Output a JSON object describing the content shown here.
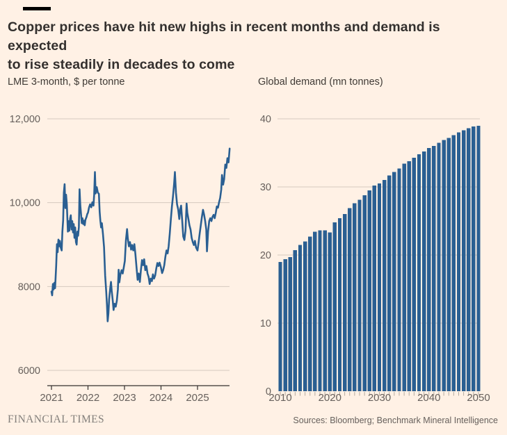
{
  "page": {
    "title_line1": "Copper prices have hit new highs in recent months and demand is expected",
    "title_line2": "to rise steadily in decades to come",
    "footer_brand": "FINANCIAL TIMES",
    "footer_sources": "Sources: Bloomberg; Benchmark Mineral Intelligence"
  },
  "colors": {
    "background": "#FFF1E5",
    "accent_bar": "#000000",
    "series_blue": "#2A5F92",
    "grid": "#D4C9BE",
    "axis": "#33302E",
    "tick_label": "#66605C",
    "bar_tick": "#B3A89C"
  },
  "chart_data": [
    {
      "type": "line",
      "title": "LME 3-month, $ per tonne",
      "ylabel": "$ per tonne",
      "ylim": [
        6000,
        12000
      ],
      "grid": true,
      "y_ticks": [
        {
          "value": 12000,
          "label": "12,000"
        },
        {
          "value": 10000,
          "label": "10,000"
        },
        {
          "value": 8000,
          "label": "8000"
        },
        {
          "value": 6000,
          "label": "6000"
        }
      ],
      "x_ticks": [
        {
          "value": 2021,
          "label": "2021"
        },
        {
          "value": 2022,
          "label": "2022"
        },
        {
          "value": 2023,
          "label": "2023"
        },
        {
          "value": 2024,
          "label": "2024"
        },
        {
          "value": 2025,
          "label": "2025"
        }
      ],
      "x_range": [
        2021.0,
        2025.88
      ],
      "series": [
        [
          2021.0,
          7880
        ],
        [
          2021.02,
          7790
        ],
        [
          2021.04,
          8060
        ],
        [
          2021.06,
          7930
        ],
        [
          2021.08,
          8090
        ],
        [
          2021.1,
          7960
        ],
        [
          2021.13,
          8500
        ],
        [
          2021.15,
          9010
        ],
        [
          2021.17,
          8820
        ],
        [
          2021.19,
          9120
        ],
        [
          2021.21,
          8960
        ],
        [
          2021.23,
          9090
        ],
        [
          2021.25,
          8940
        ],
        [
          2021.28,
          8860
        ],
        [
          2021.3,
          9310
        ],
        [
          2021.32,
          9580
        ],
        [
          2021.34,
          10240
        ],
        [
          2021.36,
          10440
        ],
        [
          2021.38,
          9870
        ],
        [
          2021.4,
          10190
        ],
        [
          2021.42,
          9960
        ],
        [
          2021.45,
          9310
        ],
        [
          2021.47,
          9560
        ],
        [
          2021.49,
          9330
        ],
        [
          2021.51,
          9620
        ],
        [
          2021.53,
          9700
        ],
        [
          2021.55,
          9360
        ],
        [
          2021.57,
          9560
        ],
        [
          2021.59,
          9290
        ],
        [
          2021.61,
          9490
        ],
        [
          2021.63,
          9160
        ],
        [
          2021.65,
          9410
        ],
        [
          2021.67,
          9060
        ],
        [
          2021.69,
          9000
        ],
        [
          2021.71,
          9310
        ],
        [
          2021.73,
          9210
        ],
        [
          2021.75,
          9420
        ],
        [
          2021.77,
          10320
        ],
        [
          2021.79,
          9930
        ],
        [
          2021.81,
          9730
        ],
        [
          2021.83,
          9510
        ],
        [
          2021.85,
          9630
        ],
        [
          2021.87,
          9490
        ],
        [
          2021.89,
          9570
        ],
        [
          2021.91,
          9460
        ],
        [
          2021.93,
          9590
        ],
        [
          2021.96,
          9660
        ],
        [
          2021.98,
          9730
        ],
        [
          2022.0,
          9760
        ],
        [
          2022.03,
          9890
        ],
        [
          2022.06,
          9960
        ],
        [
          2022.09,
          9890
        ],
        [
          2022.12,
          10010
        ],
        [
          2022.15,
          9930
        ],
        [
          2022.17,
          10190
        ],
        [
          2022.19,
          10730
        ],
        [
          2022.21,
          10220
        ],
        [
          2022.24,
          10370
        ],
        [
          2022.27,
          10240
        ],
        [
          2022.3,
          10210
        ],
        [
          2022.32,
          9780
        ],
        [
          2022.34,
          9570
        ],
        [
          2022.36,
          9410
        ],
        [
          2022.38,
          9510
        ],
        [
          2022.41,
          9260
        ],
        [
          2022.44,
          8940
        ],
        [
          2022.47,
          8260
        ],
        [
          2022.5,
          7860
        ],
        [
          2022.52,
          7560
        ],
        [
          2022.54,
          7170
        ],
        [
          2022.56,
          7360
        ],
        [
          2022.58,
          7690
        ],
        [
          2022.61,
          7960
        ],
        [
          2022.63,
          8110
        ],
        [
          2022.65,
          7900
        ],
        [
          2022.68,
          7650
        ],
        [
          2022.7,
          7440
        ],
        [
          2022.73,
          7590
        ],
        [
          2022.76,
          7520
        ],
        [
          2022.79,
          7660
        ],
        [
          2022.82,
          7930
        ],
        [
          2022.84,
          8400
        ],
        [
          2022.86,
          8100
        ],
        [
          2022.89,
          8290
        ],
        [
          2022.92,
          8390
        ],
        [
          2022.95,
          8310
        ],
        [
          2022.98,
          8460
        ],
        [
          2023.01,
          8610
        ],
        [
          2023.04,
          9110
        ],
        [
          2023.07,
          9370
        ],
        [
          2023.09,
          9160
        ],
        [
          2023.12,
          8960
        ],
        [
          2023.15,
          9060
        ],
        [
          2023.18,
          8880
        ],
        [
          2023.21,
          8990
        ],
        [
          2023.24,
          8860
        ],
        [
          2023.27,
          9010
        ],
        [
          2023.3,
          8770
        ],
        [
          2023.33,
          8460
        ],
        [
          2023.36,
          8160
        ],
        [
          2023.39,
          8310
        ],
        [
          2023.42,
          8110
        ],
        [
          2023.45,
          8390
        ],
        [
          2023.48,
          8630
        ],
        [
          2023.51,
          8510
        ],
        [
          2023.54,
          8650
        ],
        [
          2023.57,
          8390
        ],
        [
          2023.6,
          8490
        ],
        [
          2023.63,
          8310
        ],
        [
          2023.66,
          8230
        ],
        [
          2023.69,
          8060
        ],
        [
          2023.72,
          8190
        ],
        [
          2023.75,
          8130
        ],
        [
          2023.78,
          8290
        ],
        [
          2023.81,
          8190
        ],
        [
          2023.84,
          8260
        ],
        [
          2023.87,
          8430
        ],
        [
          2023.9,
          8560
        ],
        [
          2023.93,
          8490
        ],
        [
          2023.96,
          8570
        ],
        [
          2024.0,
          8450
        ],
        [
          2024.03,
          8320
        ],
        [
          2024.06,
          8390
        ],
        [
          2024.09,
          8510
        ],
        [
          2024.12,
          8710
        ],
        [
          2024.15,
          8860
        ],
        [
          2024.18,
          8790
        ],
        [
          2024.21,
          8960
        ],
        [
          2024.24,
          9260
        ],
        [
          2024.27,
          9610
        ],
        [
          2024.3,
          9910
        ],
        [
          2024.33,
          10160
        ],
        [
          2024.36,
          10460
        ],
        [
          2024.38,
          10730
        ],
        [
          2024.41,
          10240
        ],
        [
          2024.44,
          9960
        ],
        [
          2024.47,
          9840
        ],
        [
          2024.5,
          9610
        ],
        [
          2024.53,
          9860
        ],
        [
          2024.55,
          9930
        ],
        [
          2024.58,
          9590
        ],
        [
          2024.61,
          9190
        ],
        [
          2024.64,
          9110
        ],
        [
          2024.67,
          9330
        ],
        [
          2024.7,
          9980
        ],
        [
          2024.72,
          9760
        ],
        [
          2024.75,
          9610
        ],
        [
          2024.78,
          9460
        ],
        [
          2024.81,
          9360
        ],
        [
          2024.84,
          9160
        ],
        [
          2024.87,
          9060
        ],
        [
          2024.9,
          8990
        ],
        [
          2024.93,
          9090
        ],
        [
          2024.96,
          8930
        ],
        [
          2025.0,
          8860
        ],
        [
          2025.03,
          9060
        ],
        [
          2025.06,
          9260
        ],
        [
          2025.09,
          9460
        ],
        [
          2025.12,
          9660
        ],
        [
          2025.15,
          9830
        ],
        [
          2025.18,
          9710
        ],
        [
          2025.21,
          9560
        ],
        [
          2025.24,
          9360
        ],
        [
          2025.26,
          8840
        ],
        [
          2025.29,
          9310
        ],
        [
          2025.32,
          9560
        ],
        [
          2025.35,
          9630
        ],
        [
          2025.38,
          9560
        ],
        [
          2025.41,
          9660
        ],
        [
          2025.44,
          9710
        ],
        [
          2025.47,
          9630
        ],
        [
          2025.5,
          9760
        ],
        [
          2025.53,
          9910
        ],
        [
          2025.56,
          9880
        ],
        [
          2025.59,
          10010
        ],
        [
          2025.62,
          10110
        ],
        [
          2025.65,
          10310
        ],
        [
          2025.67,
          10660
        ],
        [
          2025.7,
          10430
        ],
        [
          2025.73,
          10560
        ],
        [
          2025.76,
          10910
        ],
        [
          2025.79,
          10830
        ],
        [
          2025.82,
          11060
        ],
        [
          2025.85,
          10960
        ],
        [
          2025.88,
          11290
        ]
      ]
    },
    {
      "type": "bar",
      "title": "Global demand (mn tonnes)",
      "ylabel": "mn tonnes",
      "ylim": [
        0,
        40
      ],
      "grid": true,
      "y_ticks": [
        {
          "value": 40,
          "label": "40"
        },
        {
          "value": 30,
          "label": "30"
        },
        {
          "value": 20,
          "label": "20"
        },
        {
          "value": 10,
          "label": "10"
        },
        {
          "value": 0,
          "label": "0"
        }
      ],
      "x_tick_labels": [
        "2010",
        "2020",
        "2030",
        "2040",
        "2050"
      ],
      "categories": [
        2010,
        2011,
        2012,
        2013,
        2014,
        2015,
        2016,
        2017,
        2018,
        2019,
        2020,
        2021,
        2022,
        2023,
        2024,
        2025,
        2026,
        2027,
        2028,
        2029,
        2030,
        2031,
        2032,
        2033,
        2034,
        2035,
        2036,
        2037,
        2038,
        2039,
        2040,
        2041,
        2042,
        2043,
        2044,
        2045,
        2046,
        2047,
        2048,
        2049,
        2050
      ],
      "values": [
        19.0,
        19.4,
        19.7,
        20.7,
        21.5,
        22.0,
        22.7,
        23.4,
        23.6,
        23.6,
        23.3,
        24.8,
        25.4,
        26.0,
        26.9,
        27.6,
        28.1,
        28.8,
        29.5,
        30.2,
        30.5,
        31.0,
        31.7,
        32.2,
        32.7,
        33.4,
        33.8,
        34.3,
        34.8,
        35.2,
        35.7,
        36.0,
        36.5,
        36.9,
        37.2,
        37.6,
        38.0,
        38.3,
        38.6,
        38.9,
        39.0
      ]
    }
  ]
}
